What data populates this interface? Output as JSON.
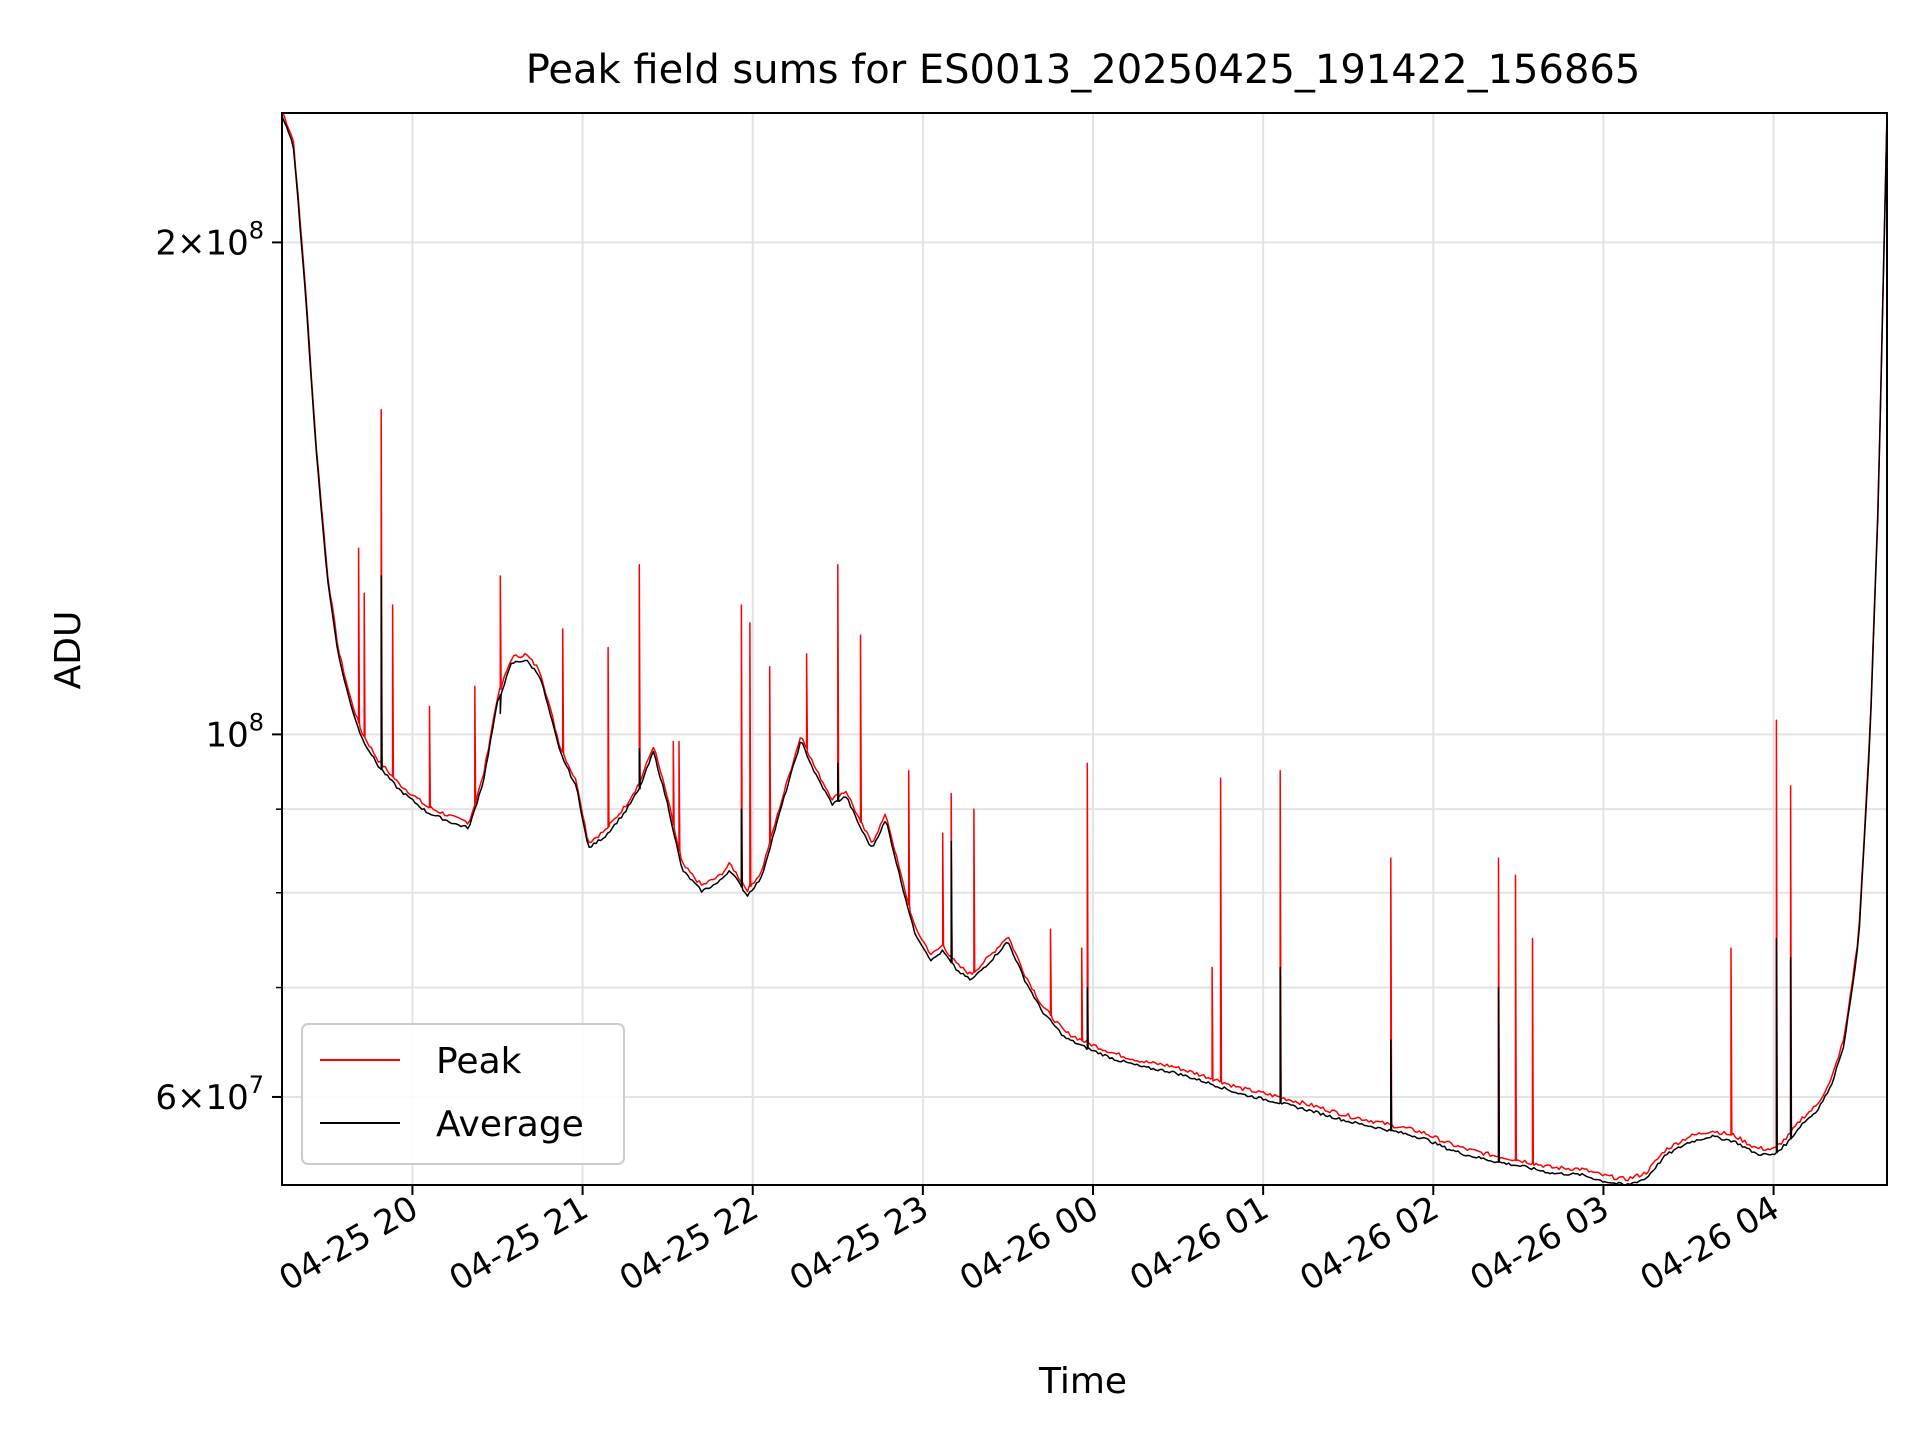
{
  "chart_data": {
    "type": "line",
    "title": "Peak field sums for ES0013_20250425_191422_156865",
    "xlabel": "Time",
    "ylabel": "ADU",
    "yscale": "log",
    "xlim": [
      "2025-04-25 19:14",
      "2025-04-26 04:40"
    ],
    "ylim": [
      53000000,
      240000000
    ],
    "grid": true,
    "legend": {
      "placement": "lower-left",
      "entries": [
        "Peak",
        "Average"
      ]
    },
    "x_ticks": [
      "04-25 20",
      "04-25 21",
      "04-25 22",
      "04-25 23",
      "04-26 00",
      "04-26 01",
      "04-26 02",
      "04-26 03",
      "04-26 04"
    ],
    "y_ticks": [
      {
        "value": 200000000,
        "mantissa": "2",
        "exp": "8"
      },
      {
        "value": 100000000,
        "mantissa": "",
        "exp": "8"
      },
      {
        "value": 60000000,
        "mantissa": "6",
        "exp": "7"
      }
    ],
    "y_minor_ticks": [
      70000000,
      80000000,
      90000000
    ],
    "colors": {
      "Peak": "#ff0000",
      "Average": "#000000"
    },
    "baseline": [
      [
        "2025-04-25 19:14",
        240000000
      ],
      [
        "2025-04-25 19:18",
        230000000
      ],
      [
        "2025-04-25 19:22",
        190000000
      ],
      [
        "2025-04-25 19:26",
        150000000
      ],
      [
        "2025-04-25 19:30",
        125000000
      ],
      [
        "2025-04-25 19:34",
        112000000
      ],
      [
        "2025-04-25 19:38",
        105000000
      ],
      [
        "2025-04-25 19:42",
        100000000
      ],
      [
        "2025-04-25 19:48",
        96000000
      ],
      [
        "2025-04-25 19:55",
        93000000
      ],
      [
        "2025-04-25 20:05",
        90000000
      ],
      [
        "2025-04-25 20:15",
        88500000
      ],
      [
        "2025-04-25 20:20",
        88000000
      ],
      [
        "2025-04-25 20:25",
        94000000
      ],
      [
        "2025-04-25 20:30",
        105000000
      ],
      [
        "2025-04-25 20:35",
        111000000
      ],
      [
        "2025-04-25 20:40",
        111500000
      ],
      [
        "2025-04-25 20:45",
        109000000
      ],
      [
        "2025-04-25 20:52",
        98000000
      ],
      [
        "2025-04-25 20:58",
        93000000
      ],
      [
        "2025-04-25 21:02",
        85500000
      ],
      [
        "2025-04-25 21:08",
        87000000
      ],
      [
        "2025-04-25 21:15",
        90000000
      ],
      [
        "2025-04-25 21:20",
        93000000
      ],
      [
        "2025-04-25 21:25",
        98000000
      ],
      [
        "2025-04-25 21:30",
        91000000
      ],
      [
        "2025-04-25 21:35",
        83000000
      ],
      [
        "2025-04-25 21:42",
        80500000
      ],
      [
        "2025-04-25 21:48",
        81500000
      ],
      [
        "2025-04-25 21:52",
        83000000
      ],
      [
        "2025-04-25 21:58",
        80000000
      ],
      [
        "2025-04-25 22:03",
        82000000
      ],
      [
        "2025-04-25 22:08",
        88000000
      ],
      [
        "2025-04-25 22:12",
        93000000
      ],
      [
        "2025-04-25 22:17",
        99500000
      ],
      [
        "2025-04-25 22:22",
        95000000
      ],
      [
        "2025-04-25 22:28",
        91000000
      ],
      [
        "2025-04-25 22:33",
        92000000
      ],
      [
        "2025-04-25 22:38",
        88000000
      ],
      [
        "2025-04-25 22:42",
        85500000
      ],
      [
        "2025-04-25 22:47",
        89000000
      ],
      [
        "2025-04-25 22:52",
        82000000
      ],
      [
        "2025-04-25 22:57",
        76000000
      ],
      [
        "2025-04-25 23:03",
        73000000
      ],
      [
        "2025-04-25 23:07",
        74000000
      ],
      [
        "2025-04-25 23:12",
        72000000
      ],
      [
        "2025-04-25 23:17",
        71000000
      ],
      [
        "2025-04-25 23:24",
        73000000
      ],
      [
        "2025-04-25 23:30",
        75000000
      ],
      [
        "2025-04-25 23:36",
        71000000
      ],
      [
        "2025-04-25 23:42",
        68000000
      ],
      [
        "2025-04-25 23:50",
        65500000
      ],
      [
        "2025-04-25 23:58",
        64500000
      ],
      [
        "2025-04-26 00:08",
        63500000
      ],
      [
        "2025-04-26 00:18",
        62800000
      ],
      [
        "2025-04-26 00:28",
        62400000
      ],
      [
        "2025-04-26 00:40",
        61500000
      ],
      [
        "2025-04-26 00:52",
        60500000
      ],
      [
        "2025-04-26 01:05",
        59800000
      ],
      [
        "2025-04-26 01:18",
        59000000
      ],
      [
        "2025-04-26 01:30",
        58200000
      ],
      [
        "2025-04-26 01:40",
        57700000
      ],
      [
        "2025-04-26 01:50",
        57200000
      ],
      [
        "2025-04-26 01:57",
        56800000
      ],
      [
        "2025-04-26 02:05",
        56000000
      ],
      [
        "2025-04-26 02:12",
        55500000
      ],
      [
        "2025-04-26 02:22",
        55000000
      ],
      [
        "2025-04-26 02:32",
        54600000
      ],
      [
        "2025-04-26 02:42",
        54100000
      ],
      [
        "2025-04-26 02:52",
        54000000
      ],
      [
        "2025-04-26 03:00",
        53500000
      ],
      [
        "2025-04-26 03:08",
        53200000
      ],
      [
        "2025-04-26 03:15",
        53700000
      ],
      [
        "2025-04-26 03:22",
        55500000
      ],
      [
        "2025-04-26 03:30",
        56500000
      ],
      [
        "2025-04-26 03:38",
        57000000
      ],
      [
        "2025-04-26 03:46",
        56600000
      ],
      [
        "2025-04-26 03:54",
        55600000
      ],
      [
        "2025-04-26 04:00",
        55500000
      ],
      [
        "2025-04-26 04:05",
        56500000
      ],
      [
        "2025-04-26 04:10",
        58000000
      ],
      [
        "2025-04-26 04:15",
        59000000
      ],
      [
        "2025-04-26 04:20",
        61000000
      ],
      [
        "2025-04-26 04:25",
        65000000
      ],
      [
        "2025-04-26 04:30",
        75000000
      ],
      [
        "2025-04-26 04:34",
        100000000
      ],
      [
        "2025-04-26 04:37",
        140000000
      ],
      [
        "2025-04-26 04:40",
        240000000
      ]
    ],
    "series": [
      {
        "name": "Peak",
        "spikes": [
          [
            "2025-04-25 19:41",
            130000000
          ],
          [
            "2025-04-25 19:43",
            122000000
          ],
          [
            "2025-04-25 19:49",
            158000000
          ],
          [
            "2025-04-25 19:53",
            120000000
          ],
          [
            "2025-04-25 20:06",
            104000000
          ],
          [
            "2025-04-25 20:22",
            107000000
          ],
          [
            "2025-04-25 20:31",
            125000000
          ],
          [
            "2025-04-25 20:53",
            116000000
          ],
          [
            "2025-04-25 21:09",
            113000000
          ],
          [
            "2025-04-25 21:20",
            127000000
          ],
          [
            "2025-04-25 21:32",
            99000000
          ],
          [
            "2025-04-25 21:34",
            99000000
          ],
          [
            "2025-04-25 21:56",
            120000000
          ],
          [
            "2025-04-25 21:59",
            117000000
          ],
          [
            "2025-04-25 22:06",
            110000000
          ],
          [
            "2025-04-25 22:19",
            112000000
          ],
          [
            "2025-04-25 22:30",
            127000000
          ],
          [
            "2025-04-25 22:38",
            115000000
          ],
          [
            "2025-04-25 22:55",
            95000000
          ],
          [
            "2025-04-25 23:07",
            87000000
          ],
          [
            "2025-04-25 23:10",
            92000000
          ],
          [
            "2025-04-25 23:18",
            90000000
          ],
          [
            "2025-04-25 23:45",
            76000000
          ],
          [
            "2025-04-25 23:56",
            74000000
          ],
          [
            "2025-04-25 23:58",
            96000000
          ],
          [
            "2025-04-26 00:42",
            72000000
          ],
          [
            "2025-04-26 00:45",
            94000000
          ],
          [
            "2025-04-26 01:06",
            95000000
          ],
          [
            "2025-04-26 01:45",
            84000000
          ],
          [
            "2025-04-26 02:23",
            84000000
          ],
          [
            "2025-04-26 02:29",
            82000000
          ],
          [
            "2025-04-26 02:35",
            75000000
          ],
          [
            "2025-04-26 03:45",
            74000000
          ],
          [
            "2025-04-26 04:01",
            102000000
          ],
          [
            "2025-04-26 04:06",
            93000000
          ]
        ]
      },
      {
        "name": "Average",
        "spikes": [
          [
            "2025-04-25 19:49",
            125000000
          ],
          [
            "2025-04-25 20:31",
            103000000
          ],
          [
            "2025-04-25 21:20",
            98000000
          ],
          [
            "2025-04-25 21:56",
            90000000
          ],
          [
            "2025-04-25 22:30",
            96000000
          ],
          [
            "2025-04-25 23:10",
            86000000
          ],
          [
            "2025-04-25 23:58",
            70000000
          ],
          [
            "2025-04-26 01:06",
            72000000
          ],
          [
            "2025-04-26 01:45",
            65000000
          ],
          [
            "2025-04-26 02:23",
            70000000
          ],
          [
            "2025-04-26 04:01",
            75000000
          ],
          [
            "2025-04-26 04:06",
            73000000
          ]
        ]
      }
    ]
  }
}
